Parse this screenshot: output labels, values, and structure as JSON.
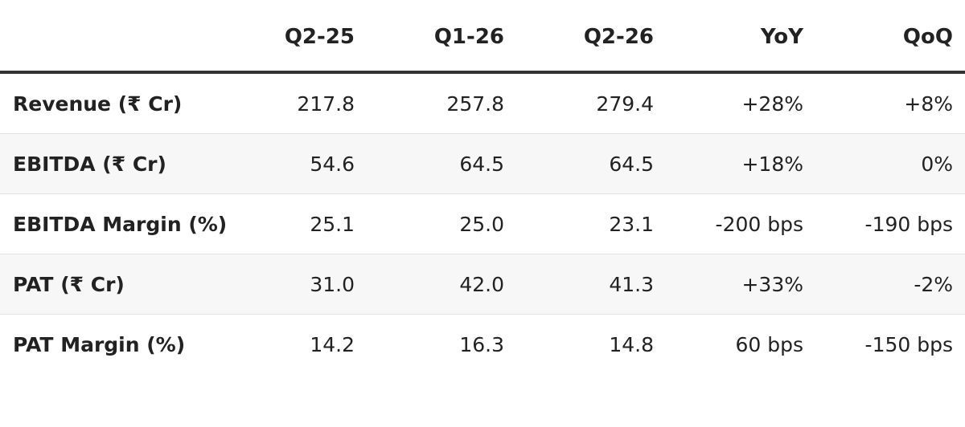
{
  "table": {
    "headers": [
      "Q2-25",
      "Q1-26",
      "Q2-26",
      "YoY",
      "QoQ"
    ],
    "rows": [
      [
        "Revenue (₹ Cr)",
        "217.8",
        "257.8",
        "279.4",
        "+28%",
        "+8%"
      ],
      [
        "EBITDA (₹ Cr)",
        "54.6",
        "64.5",
        "64.5",
        "+18%",
        "0%"
      ],
      [
        "EBITDA Margin (%)",
        "25.1",
        "25.0",
        "23.1",
        "-200 bps",
        "-190 bps"
      ],
      [
        "PAT (₹ Cr)",
        "31.0",
        "42.0",
        "41.3",
        "+33%",
        "-2%"
      ],
      [
        "PAT Margin (%)",
        "14.2",
        "16.3",
        "14.8",
        "60 bps",
        "-150 bps"
      ]
    ]
  }
}
